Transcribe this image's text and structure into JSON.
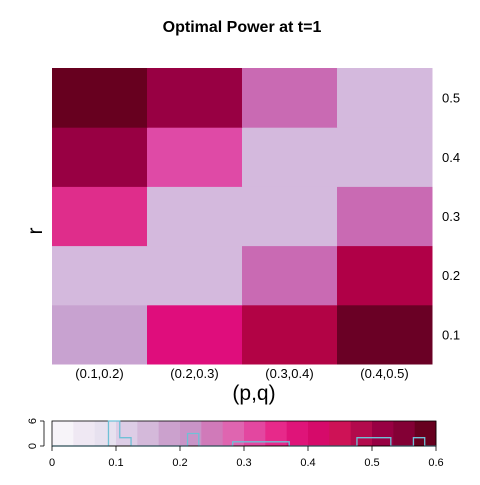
{
  "chart_data": {
    "type": "heatmap",
    "title": "Optimal Power at t=1",
    "xlabel": "(p,q)",
    "ylabel": "r",
    "x_categories": [
      "(0.1,0.2)",
      "(0.2,0.3)",
      "(0.3,0.4)",
      "(0.4,0.5)"
    ],
    "y_categories": [
      "0.1",
      "0.2",
      "0.3",
      "0.4",
      "0.5"
    ],
    "values": [
      [
        0.12,
        0.45,
        0.5,
        0.58
      ],
      [
        0.09,
        0.09,
        0.22,
        0.48
      ],
      [
        0.32,
        0.09,
        0.09,
        0.22
      ],
      [
        0.48,
        0.27,
        0.09,
        0.09
      ],
      [
        0.58,
        0.5,
        0.22,
        0.09
      ]
    ],
    "colors": [
      [
        "#c8a2d0",
        "#df0d7c",
        "#b20345",
        "#6a0025"
      ],
      [
        "#d4b9dd",
        "#d4b9dd",
        "#c96ab3",
        "#b00047"
      ],
      [
        "#df2d8b",
        "#d4b9dd",
        "#d4b9dd",
        "#c96ab3"
      ],
      [
        "#980043",
        "#df4aa6",
        "#d4b9dd",
        "#d4b9dd"
      ],
      [
        "#67001f",
        "#980043",
        "#c96ab3",
        "#d4b9dd"
      ]
    ],
    "colorbar": {
      "range": [
        0,
        0.6
      ],
      "ticks": [
        "0",
        "0.1",
        "0.2",
        "0.3",
        "0.4",
        "0.5",
        "0.6"
      ],
      "palette": [
        "#f7f4f9",
        "#efe8f3",
        "#e7e1ef",
        "#ddcde6",
        "#d4b9da",
        "#cba1cd",
        "#c994c7",
        "#d07ab9",
        "#df65b0",
        "#e347a0",
        "#e7298a",
        "#df1479",
        "#d60a6a",
        "#ce1256",
        "#b30a4c",
        "#980043",
        "#830035",
        "#67001f"
      ],
      "hist_ticks": [
        "0",
        "6"
      ],
      "hist_bins": [
        0,
        0,
        0,
        0,
        0,
        6,
        2,
        0,
        0,
        0,
        0,
        0,
        3,
        0,
        0,
        0,
        1,
        1,
        1,
        1,
        1,
        0,
        0,
        0,
        0,
        0,
        0,
        2,
        2,
        2,
        0,
        0,
        2,
        0
      ]
    }
  }
}
